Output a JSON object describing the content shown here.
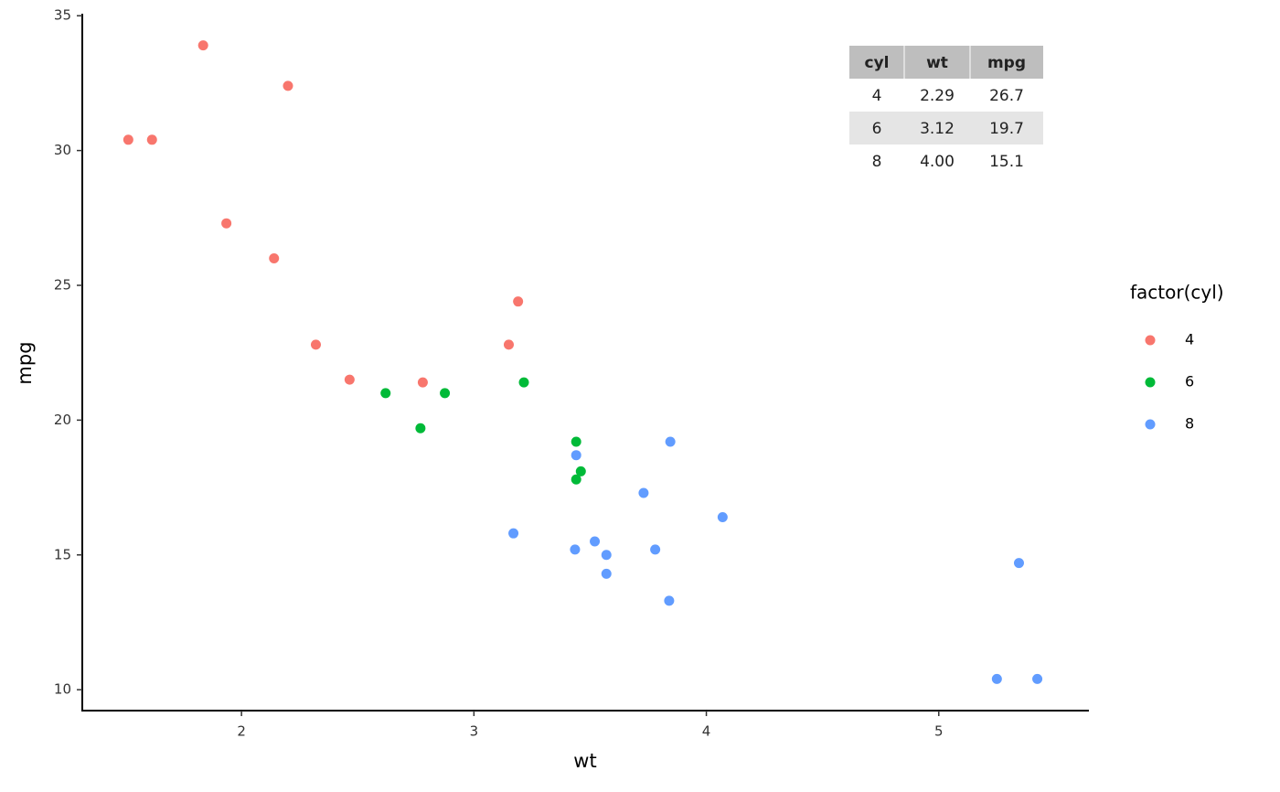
{
  "chart_data": {
    "type": "scatter",
    "x_label": "wt",
    "y_label": "mpg",
    "xlim": [
      1.315,
      5.646
    ],
    "ylim": [
      9.225,
      35.075
    ],
    "xticks": [
      2,
      3,
      4,
      5
    ],
    "yticks": [
      10,
      15,
      20,
      25,
      30,
      35
    ],
    "grid": false,
    "legend": {
      "title": "factor(cyl)",
      "position": "right"
    },
    "series": [
      {
        "name": "4",
        "color": "#F8766D",
        "x": [
          2.32,
          3.19,
          3.15,
          2.2,
          1.615,
          1.835,
          2.465,
          1.935,
          2.14,
          1.513,
          2.78
        ],
        "values": [
          22.8,
          24.4,
          22.8,
          32.4,
          30.4,
          33.9,
          21.5,
          27.3,
          26.0,
          30.4,
          21.4
        ]
      },
      {
        "name": "6",
        "color": "#00BA38",
        "x": [
          2.62,
          2.875,
          3.215,
          3.46,
          3.44,
          3.44,
          2.77
        ],
        "values": [
          21.0,
          21.0,
          21.4,
          18.1,
          19.2,
          17.8,
          19.7
        ]
      },
      {
        "name": "8",
        "color": "#619CFF",
        "x": [
          3.44,
          3.57,
          4.07,
          3.73,
          3.78,
          5.25,
          5.424,
          5.345,
          3.52,
          3.435,
          3.84,
          3.845,
          3.17,
          3.57
        ],
        "values": [
          18.7,
          14.3,
          16.4,
          17.3,
          15.2,
          10.4,
          10.4,
          14.7,
          15.5,
          15.2,
          13.3,
          19.2,
          15.8,
          15.0
        ]
      }
    ],
    "table": {
      "columns": [
        "cyl",
        "wt",
        "mpg"
      ],
      "rows": [
        [
          "4",
          "2.29",
          "26.7"
        ],
        [
          "6",
          "3.12",
          "19.7"
        ],
        [
          "8",
          "4.00",
          "15.1"
        ]
      ]
    }
  }
}
